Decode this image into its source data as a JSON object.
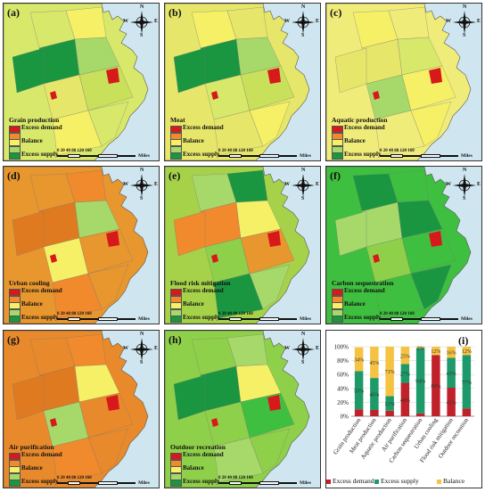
{
  "maps": [
    {
      "label": "(a)",
      "title": "Grain production",
      "fill": "#d8e86a"
    },
    {
      "label": "(b)",
      "title": "Meat",
      "fill": "#e6e66a"
    },
    {
      "label": "(c)",
      "title": "Aquatic production",
      "fill": "#f0ec7a"
    },
    {
      "label": "(d)",
      "title": "Urban cooling",
      "fill": "#e8962e"
    },
    {
      "label": "(e)",
      "title": "Flood risk mitigation",
      "fill": "#a6d24a"
    },
    {
      "label": "(f)",
      "title": "Carbon sequestration",
      "fill": "#3fbf3f"
    },
    {
      "label": "(g)",
      "title": "Air purification",
      "fill": "#e88a2c"
    },
    {
      "label": "(h)",
      "title": "Outdoor recreation",
      "fill": "#8fd04a"
    }
  ],
  "legend": {
    "items": [
      "Excess demand",
      "",
      "Balance",
      "",
      "Excess supply"
    ],
    "colors": [
      "#d7191c",
      "#f08a2c",
      "#f5f065",
      "#a6d96a",
      "#1a9641"
    ]
  },
  "scale": {
    "ticks": "0  20 40      80       120      160",
    "unit": "Miles"
  },
  "compass": {
    "n": "N",
    "s": "S",
    "e": "E",
    "w": "W"
  },
  "chart": {
    "label": "(i)",
    "legend": [
      "Excess demand",
      "Excess supply",
      "Balance"
    ]
  },
  "chart_data": {
    "type": "bar",
    "stacked": true,
    "categories": [
      "Grain production",
      "Meat production",
      "Aquatic production",
      "Air purification",
      "Carbon sequestration",
      "Urban cooling",
      "Flood risk mitigation",
      "Outdoor recreation"
    ],
    "series": [
      {
        "name": "Excess demand",
        "values": [
          10,
          9,
          8,
          48,
          4,
          88,
          41,
          11
        ],
        "color": "#c0212a"
      },
      {
        "name": "Excess supply",
        "values": [
          55,
          46,
          21,
          27,
          94,
          0,
          43,
          77
        ],
        "color": "#1e9a6a"
      },
      {
        "name": "Balance",
        "values": [
          34,
          45,
          71,
          25,
          2,
          12,
          16,
          12
        ],
        "color": "#f5c242"
      }
    ],
    "labels": [
      {
        "cat": 0,
        "supply": "55%",
        "balance": "34%"
      },
      {
        "cat": 1,
        "supply": "46%",
        "balance": "45%"
      },
      {
        "cat": 2,
        "supply": "21%",
        "balance": "71%"
      },
      {
        "cat": 3,
        "demand": "48%",
        "supply": "27%",
        "balance": "25%"
      },
      {
        "cat": 4,
        "supply": "94%",
        "balance": "2%"
      },
      {
        "cat": 5,
        "demand": "88%",
        "balance": "12%"
      },
      {
        "cat": 6,
        "demand": "41%",
        "supply": "43%",
        "balance": "16%"
      },
      {
        "cat": 7,
        "supply": "77%",
        "balance": "12%"
      }
    ],
    "yticks": [
      "0%",
      "20%",
      "40%",
      "60%",
      "80%",
      "100%"
    ],
    "ylim": [
      0,
      100
    ],
    "grid": true,
    "legend_position": "bottom"
  }
}
